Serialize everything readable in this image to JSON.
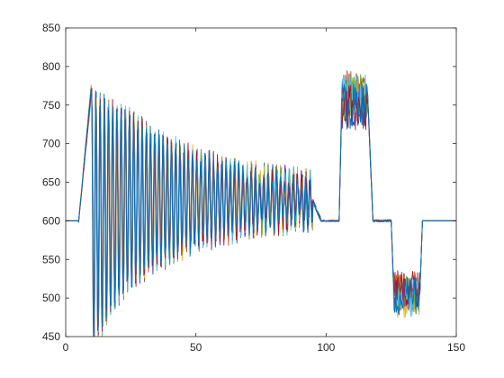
{
  "chart_data": {
    "type": "line",
    "title": "",
    "xlabel": "",
    "ylabel": "",
    "xlim": [
      0,
      150
    ],
    "ylim": [
      450,
      850
    ],
    "x_ticks": [
      0,
      50,
      100,
      150
    ],
    "y_ticks": [
      450,
      500,
      550,
      600,
      650,
      700,
      750,
      800,
      850
    ],
    "x_tick_labels": [
      "0",
      "50",
      "100",
      "150"
    ],
    "y_tick_labels": [
      "450",
      "500",
      "550",
      "600",
      "650",
      "700",
      "750",
      "800",
      "850"
    ],
    "grid": false,
    "legend": "none",
    "description_of_signals": "Many overlapping traces: baseline 600, ramp to ~780 near x=10, decaying oscillation around ~625 until x~95, step to ~760 for x 105-115, step to ~505 for x 125-135, then 600.",
    "series": [
      {
        "color": "#0072BD"
      },
      {
        "color": "#D95319"
      },
      {
        "color": "#EDB120"
      },
      {
        "color": "#7E2F8E"
      },
      {
        "color": "#77AC30"
      },
      {
        "color": "#4DBEEE"
      },
      {
        "color": "#A2142F"
      },
      {
        "color": "#0072BD"
      }
    ]
  }
}
